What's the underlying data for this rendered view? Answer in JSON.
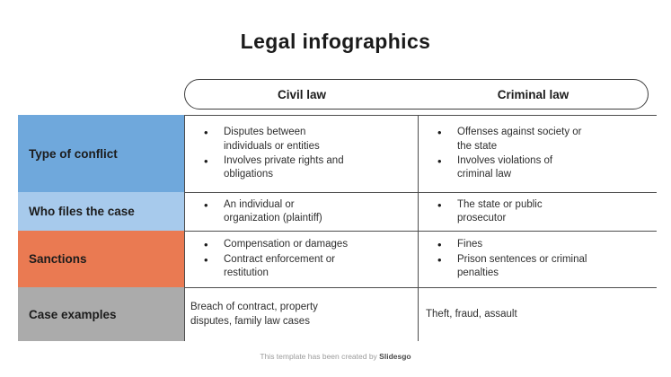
{
  "title": "Legal infographics",
  "columns": {
    "civil": "Civil law",
    "criminal": "Criminal law"
  },
  "rows": [
    {
      "label": "Type of conflict",
      "color": "#6FA8DC",
      "civil": {
        "bullets": [
          "Disputes between\nindividuals or entities",
          "Involves private rights and\nobligations"
        ]
      },
      "criminal": {
        "bullets": [
          "Offenses against society or\nthe state",
          "Involves violations of\ncriminal law"
        ]
      }
    },
    {
      "label": "Who files the case",
      "color": "#A7CAEC",
      "civil": {
        "bullets": [
          "An individual or\norganization (plaintiff)"
        ]
      },
      "criminal": {
        "bullets": [
          "The state or public\nprosecutor"
        ]
      }
    },
    {
      "label": "Sanctions",
      "color": "#EA7A52",
      "civil": {
        "bullets": [
          "Compensation or damages",
          "Contract enforcement or\nrestitution"
        ]
      },
      "criminal": {
        "bullets": [
          "Fines",
          "Prison sentences or criminal\npenalties"
        ]
      }
    },
    {
      "label": "Case examples",
      "color": "#ABABAB",
      "civil": {
        "text": "Breach of contract, property\ndisputes, family law cases"
      },
      "criminal": {
        "text": "Theft, fraud, assault"
      }
    }
  ],
  "footer": {
    "prefix": "This template has been created by ",
    "brand": "Slidesgo"
  }
}
